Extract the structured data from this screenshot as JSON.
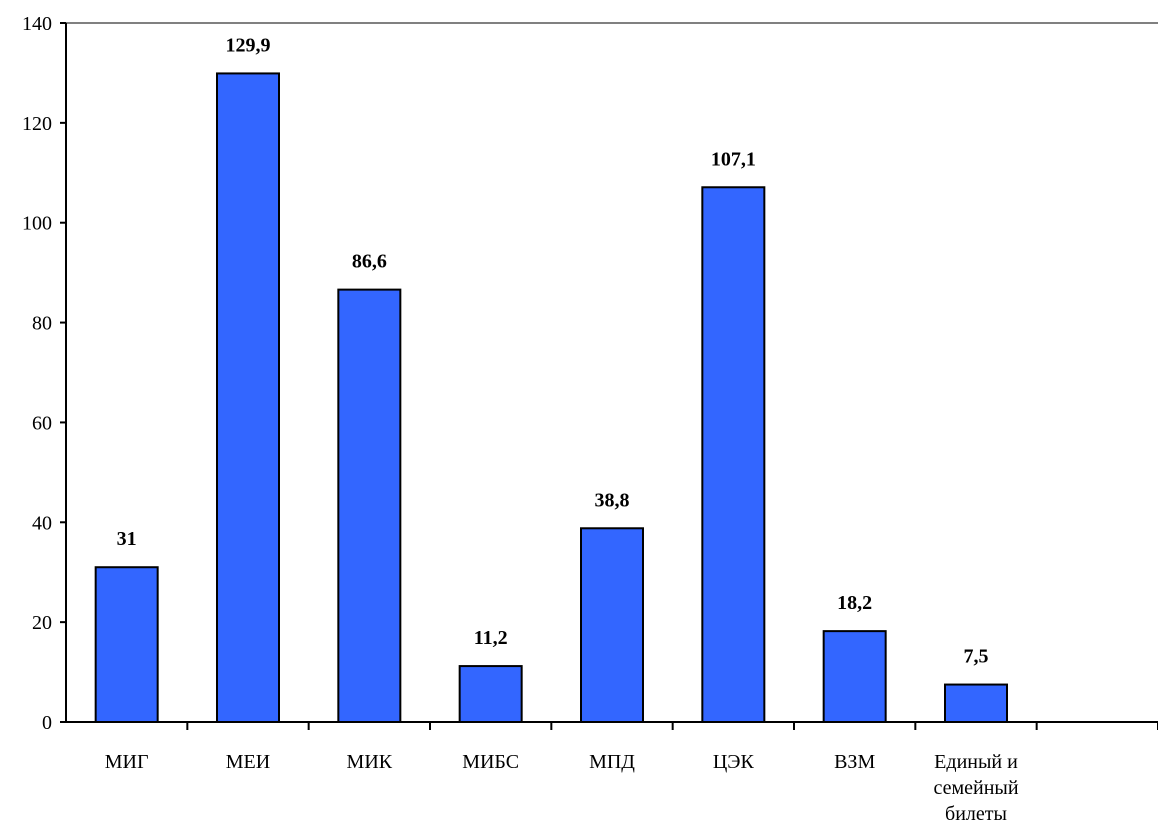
{
  "chart_data": {
    "type": "bar",
    "categories": [
      "МИГ",
      "МЕИ",
      "МИК",
      "МИБС",
      "МПД",
      "ЦЭК",
      "ВЗМ",
      "Единый и семейный билеты"
    ],
    "category_lines": [
      [
        "МИГ"
      ],
      [
        "МЕИ"
      ],
      [
        "МИК"
      ],
      [
        "МИБС"
      ],
      [
        "МПД"
      ],
      [
        "ЦЭК"
      ],
      [
        "ВЗМ"
      ],
      [
        "Единый и",
        "семейный",
        "билеты"
      ]
    ],
    "values": [
      31,
      129.9,
      86.6,
      11.2,
      38.8,
      107.1,
      18.2,
      7.5
    ],
    "value_labels": [
      "31",
      "129,9",
      "86,6",
      "11,2",
      "38,8",
      "107,1",
      "18,2",
      "7,5"
    ],
    "title": "",
    "xlabel": "",
    "ylabel": "",
    "ylim": [
      0,
      140
    ],
    "yticks": [
      0,
      20,
      40,
      60,
      80,
      100,
      120,
      140
    ],
    "slots": 9,
    "grid": false,
    "legend": "none",
    "colors": {
      "bar": "#3366FF",
      "bar_outline": "#000000",
      "top_border": "#808080"
    }
  }
}
